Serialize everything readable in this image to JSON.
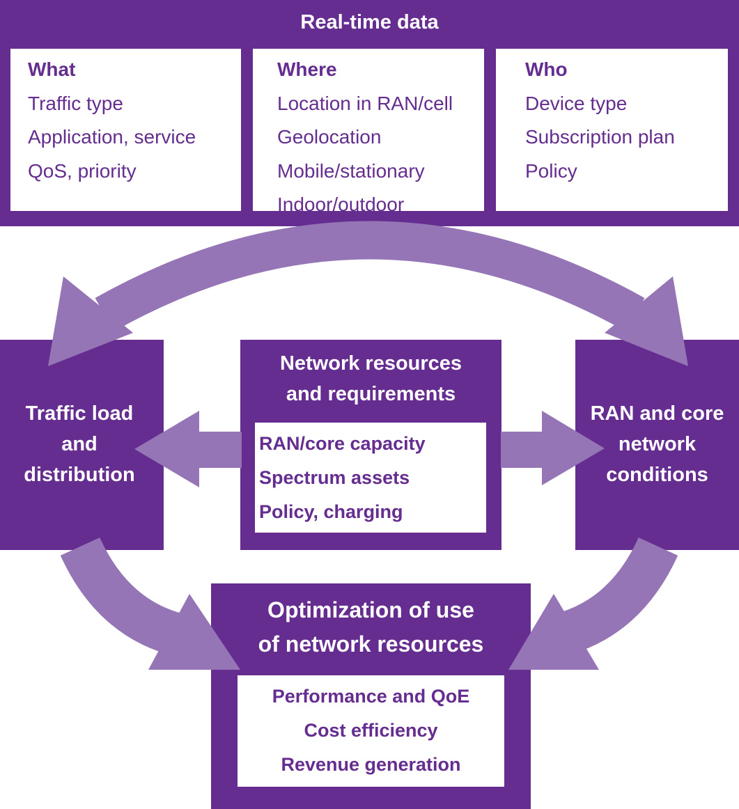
{
  "colors": {
    "dark": "#642d8f",
    "arrow": "#9575b5"
  },
  "top": {
    "title": "Real-time data",
    "columns": [
      {
        "heading": "What",
        "items": [
          "Traffic type",
          "Application, service",
          "QoS, priority"
        ]
      },
      {
        "heading": "Where",
        "items": [
          "Location in RAN/cell",
          "Geolocation",
          "Mobile/stationary",
          "Indoor/outdoor"
        ]
      },
      {
        "heading": "Who",
        "items": [
          "Device type",
          "Subscription plan",
          "Policy"
        ]
      }
    ]
  },
  "left": {
    "lines": [
      "Traffic load",
      "and",
      "distribution"
    ]
  },
  "center": {
    "lines": [
      "Network resources",
      "and requirements"
    ],
    "items": [
      "RAN/core capacity",
      "Spectrum assets",
      "Policy, charging"
    ]
  },
  "right": {
    "lines": [
      "RAN and core",
      "network",
      "conditions"
    ]
  },
  "bottom": {
    "lines": [
      "Optimization of use",
      "of network resources"
    ],
    "items": [
      "Performance and QoE",
      "Cost efficiency",
      "Revenue generation"
    ]
  }
}
